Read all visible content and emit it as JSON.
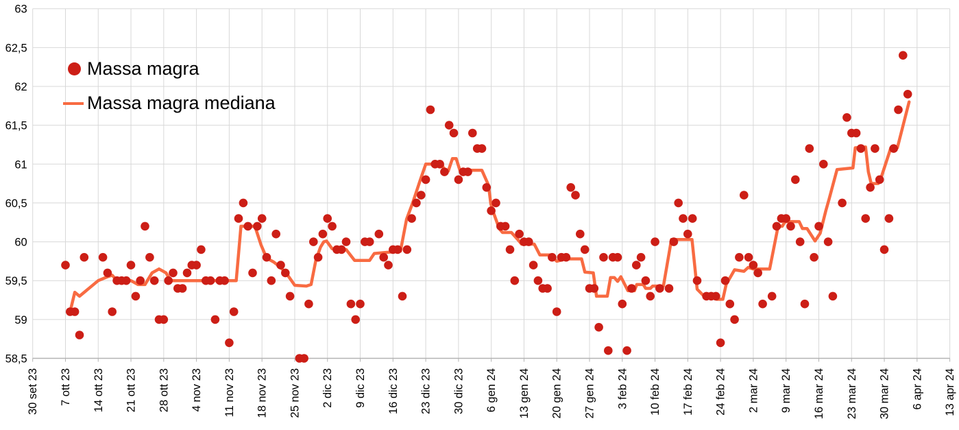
{
  "chart_data": {
    "type": "scatter",
    "title": "",
    "xlabel": "",
    "ylabel": "",
    "x_unit": "days since 30 set 23",
    "ylim": [
      58.5,
      63
    ],
    "grid": true,
    "legend_position": "top-left",
    "colors": {
      "points": "#cc1e16",
      "median_line": "#f86b42",
      "grid": "#d8d8d8",
      "axis": "#b3b3b3",
      "text": "#000000",
      "background": "#ffffff"
    },
    "y_tick_labels": [
      "63",
      "62,5",
      "62",
      "61,5",
      "61",
      "60,5",
      "60",
      "59,5",
      "59",
      "58,5"
    ],
    "y_tick_values": [
      63,
      62.5,
      62,
      61.5,
      61,
      60.5,
      60,
      59.5,
      59,
      58.5
    ],
    "x_tick_labels": [
      "30 set 23",
      "7 ott 23",
      "14 ott 23",
      "21 ott 23",
      "28 ott 23",
      "4 nov 23",
      "11 nov 23",
      "18 nov 23",
      "25 nov 23",
      "2 dic 23",
      "9 dic 23",
      "16 dic 23",
      "23 dic 23",
      "30 dic 23",
      "6 gen 24",
      "13 gen 24",
      "20 gen 24",
      "27 gen 24",
      "3 feb 24",
      "10 feb 24",
      "17 feb 24",
      "24 feb 24",
      "2 mar 24",
      "9 mar 24",
      "16 mar 24",
      "23 mar 24",
      "30 mar 24",
      "6 apr 24",
      "13 apr 24"
    ],
    "x_tick_day_offsets": [
      0,
      7,
      14,
      21,
      28,
      35,
      42,
      49,
      56,
      63,
      70,
      77,
      84,
      91,
      98,
      105,
      112,
      119,
      126,
      133,
      140,
      147,
      154,
      161,
      168,
      175,
      182,
      189,
      196
    ],
    "series": [
      {
        "name": "Massa magra",
        "type": "scatter",
        "color": "#cc1e16",
        "points": [
          [
            7,
            59.7
          ],
          [
            8,
            59.1
          ],
          [
            9,
            59.1
          ],
          [
            10,
            58.8
          ],
          [
            11,
            59.8
          ],
          [
            15,
            59.8
          ],
          [
            16,
            59.6
          ],
          [
            17,
            59.1
          ],
          [
            18,
            59.5
          ],
          [
            19,
            59.5
          ],
          [
            20,
            59.5
          ],
          [
            21,
            59.7
          ],
          [
            22,
            59.3
          ],
          [
            23,
            59.5
          ],
          [
            24,
            60.2
          ],
          [
            25,
            59.8
          ],
          [
            26,
            59.5
          ],
          [
            27,
            59.0
          ],
          [
            28,
            59.0
          ],
          [
            29,
            59.5
          ],
          [
            30,
            59.6
          ],
          [
            31,
            59.4
          ],
          [
            32,
            59.4
          ],
          [
            33,
            59.6
          ],
          [
            34,
            59.7
          ],
          [
            35,
            59.7
          ],
          [
            36,
            59.9
          ],
          [
            37,
            59.5
          ],
          [
            38,
            59.5
          ],
          [
            39,
            59.0
          ],
          [
            40,
            59.5
          ],
          [
            41,
            59.5
          ],
          [
            42,
            58.7
          ],
          [
            43,
            59.1
          ],
          [
            44,
            60.3
          ],
          [
            45,
            60.5
          ],
          [
            46,
            60.2
          ],
          [
            47,
            59.6
          ],
          [
            48,
            60.2
          ],
          [
            49,
            60.3
          ],
          [
            50,
            59.8
          ],
          [
            51,
            59.5
          ],
          [
            52,
            60.1
          ],
          [
            53,
            59.7
          ],
          [
            54,
            59.6
          ],
          [
            55,
            59.3
          ],
          [
            57,
            58.5
          ],
          [
            58,
            58.5
          ],
          [
            59,
            59.2
          ],
          [
            60,
            60.0
          ],
          [
            61,
            59.8
          ],
          [
            62,
            60.1
          ],
          [
            63,
            60.3
          ],
          [
            64,
            60.2
          ],
          [
            65,
            59.9
          ],
          [
            66,
            59.9
          ],
          [
            67,
            60.0
          ],
          [
            68,
            59.2
          ],
          [
            69,
            59.0
          ],
          [
            70,
            59.2
          ],
          [
            71,
            60.0
          ],
          [
            72,
            60.0
          ],
          [
            74,
            60.1
          ],
          [
            75,
            59.8
          ],
          [
            76,
            59.7
          ],
          [
            77,
            59.9
          ],
          [
            78,
            59.9
          ],
          [
            79,
            59.3
          ],
          [
            80,
            59.9
          ],
          [
            81,
            60.3
          ],
          [
            82,
            60.5
          ],
          [
            83,
            60.6
          ],
          [
            84,
            60.8
          ],
          [
            85,
            61.7
          ],
          [
            86,
            61.0
          ],
          [
            87,
            61.0
          ],
          [
            88,
            60.9
          ],
          [
            89,
            61.5
          ],
          [
            90,
            61.4
          ],
          [
            91,
            60.8
          ],
          [
            92,
            60.9
          ],
          [
            93,
            60.9
          ],
          [
            94,
            61.4
          ],
          [
            95,
            61.2
          ],
          [
            96,
            61.2
          ],
          [
            97,
            60.7
          ],
          [
            98,
            60.4
          ],
          [
            99,
            60.5
          ],
          [
            100,
            60.2
          ],
          [
            101,
            60.2
          ],
          [
            102,
            59.9
          ],
          [
            103,
            59.5
          ],
          [
            104,
            60.1
          ],
          [
            105,
            60.0
          ],
          [
            106,
            60.0
          ],
          [
            107,
            59.7
          ],
          [
            108,
            59.5
          ],
          [
            109,
            59.4
          ],
          [
            110,
            59.4
          ],
          [
            111,
            59.8
          ],
          [
            112,
            59.1
          ],
          [
            113,
            59.8
          ],
          [
            114,
            59.8
          ],
          [
            115,
            60.7
          ],
          [
            116,
            60.6
          ],
          [
            117,
            60.1
          ],
          [
            118,
            59.9
          ],
          [
            119,
            59.4
          ],
          [
            120,
            59.4
          ],
          [
            121,
            58.9
          ],
          [
            122,
            59.8
          ],
          [
            123,
            58.6
          ],
          [
            124,
            59.8
          ],
          [
            125,
            59.8
          ],
          [
            126,
            59.2
          ],
          [
            127,
            58.6
          ],
          [
            128,
            59.4
          ],
          [
            129,
            59.7
          ],
          [
            130,
            59.8
          ],
          [
            131,
            59.5
          ],
          [
            132,
            59.3
          ],
          [
            133,
            60.0
          ],
          [
            134,
            59.4
          ],
          [
            136,
            59.4
          ],
          [
            137,
            60.0
          ],
          [
            138,
            60.5
          ],
          [
            139,
            60.3
          ],
          [
            140,
            60.1
          ],
          [
            141,
            60.3
          ],
          [
            142,
            59.5
          ],
          [
            144,
            59.3
          ],
          [
            145,
            59.3
          ],
          [
            146,
            59.3
          ],
          [
            147,
            58.7
          ],
          [
            148,
            59.5
          ],
          [
            149,
            59.2
          ],
          [
            150,
            59.0
          ],
          [
            151,
            59.8
          ],
          [
            152,
            60.6
          ],
          [
            153,
            59.8
          ],
          [
            154,
            59.7
          ],
          [
            155,
            59.6
          ],
          [
            156,
            59.2
          ],
          [
            158,
            59.3
          ],
          [
            159,
            60.2
          ],
          [
            160,
            60.3
          ],
          [
            161,
            60.3
          ],
          [
            162,
            60.2
          ],
          [
            163,
            60.8
          ],
          [
            164,
            60.0
          ],
          [
            165,
            59.2
          ],
          [
            166,
            61.2
          ],
          [
            167,
            59.8
          ],
          [
            168,
            60.2
          ],
          [
            169,
            61.0
          ],
          [
            170,
            60.0
          ],
          [
            171,
            59.3
          ],
          [
            173,
            60.5
          ],
          [
            174,
            61.6
          ],
          [
            175,
            61.4
          ],
          [
            176,
            61.4
          ],
          [
            177,
            61.2
          ],
          [
            178,
            60.3
          ],
          [
            179,
            60.7
          ],
          [
            180,
            61.2
          ],
          [
            181,
            60.8
          ],
          [
            182,
            59.9
          ],
          [
            183,
            60.3
          ],
          [
            184,
            61.2
          ],
          [
            185,
            61.7
          ],
          [
            186,
            62.4
          ],
          [
            187,
            61.9
          ]
        ]
      },
      {
        "name": "Massa magra mediana",
        "type": "line",
        "color": "#f86b42",
        "points": [
          [
            8,
            59.1
          ],
          [
            9,
            59.35
          ],
          [
            10,
            59.3
          ],
          [
            14,
            59.5
          ],
          [
            16,
            59.55
          ],
          [
            17,
            59.57
          ],
          [
            18,
            59.5
          ],
          [
            21,
            59.5
          ],
          [
            22.5,
            59.45
          ],
          [
            24,
            59.45
          ],
          [
            25.5,
            59.6
          ],
          [
            27,
            59.65
          ],
          [
            28.5,
            59.6
          ],
          [
            29.5,
            59.5
          ],
          [
            43.5,
            59.5
          ],
          [
            44.5,
            60.2
          ],
          [
            47.5,
            60.2
          ],
          [
            48.8,
            59.96
          ],
          [
            50,
            59.79
          ],
          [
            51.5,
            59.74
          ],
          [
            53,
            59.67
          ],
          [
            54.5,
            59.57
          ],
          [
            56,
            59.44
          ],
          [
            58.5,
            59.43
          ],
          [
            59.5,
            59.45
          ],
          [
            60.5,
            59.76
          ],
          [
            61.5,
            59.93
          ],
          [
            62.2,
            60.0
          ],
          [
            62.8,
            60.01
          ],
          [
            64,
            59.91
          ],
          [
            67,
            59.9
          ],
          [
            68.8,
            59.76
          ],
          [
            72,
            59.76
          ],
          [
            73,
            59.85
          ],
          [
            78.6,
            59.88
          ],
          [
            79.9,
            60.29
          ],
          [
            81.2,
            60.5
          ],
          [
            82.8,
            60.79
          ],
          [
            84,
            61.0
          ],
          [
            87.5,
            61.0
          ],
          [
            88,
            60.91
          ],
          [
            88.8,
            60.91
          ],
          [
            89.7,
            61.07
          ],
          [
            90.5,
            61.07
          ],
          [
            91.3,
            60.92
          ],
          [
            96,
            60.92
          ],
          [
            97.4,
            60.73
          ],
          [
            97.9,
            60.49
          ],
          [
            98.5,
            60.37
          ],
          [
            99.7,
            60.17
          ],
          [
            100.4,
            60.12
          ],
          [
            102.3,
            60.12
          ],
          [
            103.8,
            60.02
          ],
          [
            104.5,
            59.97
          ],
          [
            107.2,
            59.97
          ],
          [
            108.4,
            59.83
          ],
          [
            110.6,
            59.83
          ],
          [
            112,
            59.75
          ],
          [
            114,
            59.78
          ],
          [
            117.3,
            59.78
          ],
          [
            118,
            59.61
          ],
          [
            119.8,
            59.6
          ],
          [
            120.5,
            59.3
          ],
          [
            122.8,
            59.3
          ],
          [
            123.5,
            59.54
          ],
          [
            124.3,
            59.54
          ],
          [
            125,
            59.49
          ],
          [
            125.7,
            59.55
          ],
          [
            127.2,
            59.37
          ],
          [
            128.6,
            59.37
          ],
          [
            129.1,
            59.45
          ],
          [
            130.5,
            59.45
          ],
          [
            131,
            59.4
          ],
          [
            132,
            59.4
          ],
          [
            132.5,
            59.43
          ],
          [
            134.8,
            59.43
          ],
          [
            136.5,
            60.03
          ],
          [
            140.9,
            60.03
          ],
          [
            142,
            59.39
          ],
          [
            143.3,
            59.31
          ],
          [
            145.7,
            59.31
          ],
          [
            146.2,
            59.26
          ],
          [
            147.5,
            59.26
          ],
          [
            148.2,
            59.45
          ],
          [
            150,
            59.64
          ],
          [
            152,
            59.62
          ],
          [
            152.9,
            59.67
          ],
          [
            154,
            59.65
          ],
          [
            157.5,
            59.65
          ],
          [
            159.3,
            60.2
          ],
          [
            160.2,
            60.2
          ],
          [
            160.8,
            60.26
          ],
          [
            163.8,
            60.26
          ],
          [
            164.5,
            60.17
          ],
          [
            165.5,
            60.17
          ],
          [
            167.2,
            60.01
          ],
          [
            168.3,
            60.11
          ],
          [
            169.5,
            60.4
          ],
          [
            170.2,
            60.55
          ],
          [
            171.9,
            60.93
          ],
          [
            175.3,
            60.95
          ],
          [
            175.8,
            61.21
          ],
          [
            178,
            61.22
          ],
          [
            178.6,
            60.9
          ],
          [
            179.2,
            60.75
          ],
          [
            180.7,
            60.75
          ],
          [
            181.4,
            60.84
          ],
          [
            183.4,
            61.21
          ],
          [
            184.8,
            61.21
          ],
          [
            187.3,
            61.8
          ]
        ]
      }
    ]
  },
  "legend": {
    "items": [
      {
        "label": "Massa magra"
      },
      {
        "label": "Massa magra mediana"
      }
    ]
  }
}
